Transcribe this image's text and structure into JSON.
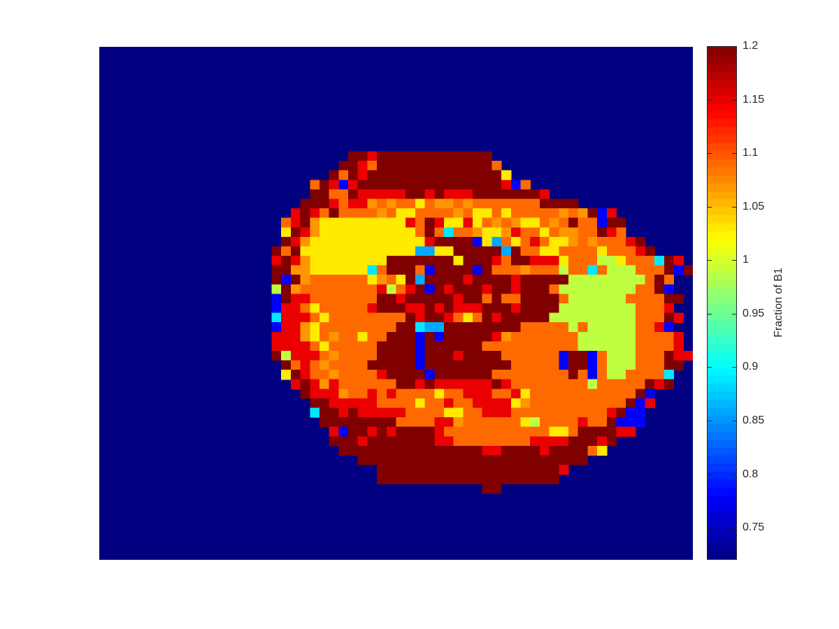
{
  "chart_data": {
    "type": "heatmap",
    "title": "",
    "xlabel": "",
    "ylabel": "",
    "grid": false,
    "colormap": "jet",
    "background_value": 0.72,
    "colorbar": {
      "label": "Fraction of B1",
      "range": [
        0.72,
        1.2
      ],
      "ticks": [
        0.75,
        0.8,
        0.85,
        0.9,
        0.95,
        1,
        1.05,
        1.1,
        1.15,
        1.2
      ],
      "tick_labels": [
        "0.75",
        "0.8",
        "0.85",
        "0.9",
        "0.95",
        "1",
        "1.05",
        "1.1",
        "1.15",
        "1.2"
      ]
    },
    "grid_size": {
      "columns": 62,
      "rows": 54
    },
    "value_codes": {
      "D": 1.2,
      "R": 1.15,
      "O": 1.09,
      "A": 1.07,
      "Y": 1.03,
      "L": 0.99,
      "C": 0.89,
      "S": 0.86,
      "B": 0.78,
      ".": 0.72
    },
    "rows": [
      "..............................................................",
      "..............................................................",
      "..............................................................",
      "..............................................................",
      "..............................................................",
      "..............................................................",
      "..............................................................",
      "..............................................................",
      "..............................................................",
      "..............................................................",
      "..............................................................",
      "..........................DDRDDDDDDDDDDDD.....................",
      ".........................DDRODDDDDDDDDDDDO....................",
      "........................DODRDDDDDDDDDDDDDDY...................",
      "......................ODRBRDDDDDDDDDDDDDDDRBO.................",
      "......................DDOODRRRRRDDRDRRRDDDDDDDR...............",
      ".....................DDDRORRAOAOOYOAAOAOOOOOOODDDD............",
      "....................RDRODOOOOAOYYOOOOAOYYOYOOOOOAOADBR........",
      "...................ORDAYYYYYYYYYRODRYYRYOAOAYYOAODOOBDD........",
      "...................YDRAYYYYYYYYYYODOCOOAYYAROOYOAAOODRO.......",
      "...................DRAYYYYYYYYYYYYRDDDDBYSOYOROYYAOAOOORD......",
      "..................DODYYYYYYYYYYYYSSYYDDDDDSDOOYYOOOOYOOORD.....",
      "..................RDRAYYYYYYYYDDDDDDDYDDDRODDRRRYOOOLLYOOOCDR...",
      "..................DDAAYYYYYYCODDDOBDDDDBDOOOAOOOLOOCOLLLOOODBDD..",
      "..................DBDAOOOOOOYAOYDSDDDDRDDDDRDDDDDLLLLLLLLODO....",
      "..................LDAOOOOOOOORLORDBDRDDDRDDRDDDOLLLLLLLLOODB....",
      "..................BDRROOOOOOODDRDDDDDRDDODOODDDDOLLLLLLOOOODD...",
      "..................BRROYOOOOORDDDRRDRDRRRDDDRDDDDLLLLLLLLOOOR....",
      "..................CRRROYOOOOOOOODRDDROYODRDDDDDLLLLLLLLLOOODR...",
      "..................BRRAYOOOOOOOODDCSSDDDDDDDDOOOOOLOLLLLLOORB....",
      "..................RRRAYOAOOYOODDDBDBDDDDDRAOOOOOOOLLLLLLOOOOR...",
      "..................RRRROYOOOOODDDDBDDDDDDOOOOOOOOOOLLLLLLOOOOR...",
      "..................DLRRROAOOOODDDDBDDDRDDDDOOOOOOBDDBOLLLOOODRR..",
      "...................DOROAOOOODDDDDBDDDDDDDDDOOOOOBDDBOLLLOOODD...",
      "...................YDROOAOOOORDDDDBDDDDDDOOOOOOOODOBOLLOOOOC....",
      "....................RDRAROOOOOODDRDRRRRRRDROOOOOOOOLOOOOODRD....",
      ".....................DRRRAOOROROOOOYOORRROORYOOOOOOOOOOODB.....",
      "......................DDRRRRROOOOYOOROORRRRYAOOOOOOOOOODBR.....",
      "......................CDDRDRRRRROOOOYYOORRROOOOOOOOOORDBB......",
      ".......................DDDDDDDDOOOORRAOOOOOOYLOOOOROODBBB......",
      "........................RBDDRDRDDDDROOOOOOOOOOOYYODDDDRR.......",
      "........................DDDRDDDDDDDRROOOOOOOORRRRDDDRD.........",
      ".........................DDDDDDDDDDDDDDDRRDDDDRDDDDOY..........",
      "...........................DDDDDDDDDDDDDDDDDDDDDDDD............",
      ".............................DDDDDDDDDDDDDDDDDDDR..............",
      ".............................DDDDDDDDDDDDDDDDDDD...............",
      "........................................DD....................",
      "..............................................................",
      "..............................................................",
      "..............................................................",
      "..............................................................",
      "..............................................................",
      "..............................................................",
      ".............................................................."
    ]
  }
}
